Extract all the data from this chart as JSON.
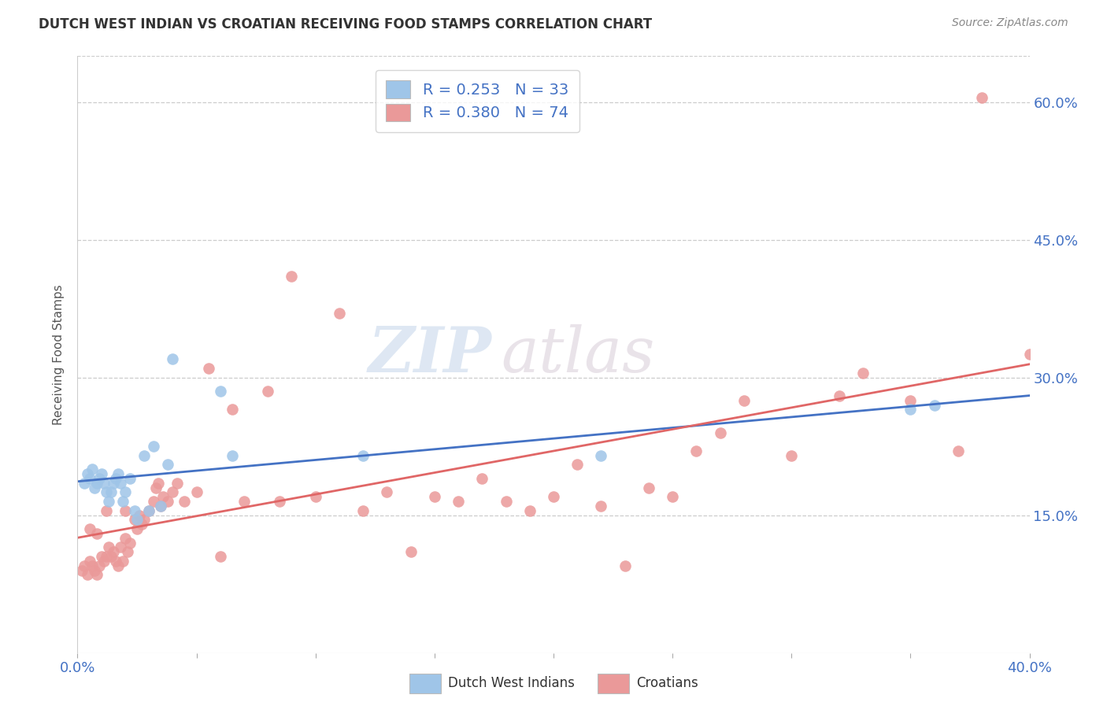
{
  "title": "DUTCH WEST INDIAN VS CROATIAN RECEIVING FOOD STAMPS CORRELATION CHART",
  "source": "Source: ZipAtlas.com",
  "ylabel": "Receiving Food Stamps",
  "ytick_labels": [
    "15.0%",
    "30.0%",
    "45.0%",
    "60.0%"
  ],
  "ytick_values": [
    0.15,
    0.3,
    0.45,
    0.6
  ],
  "xlim": [
    0.0,
    0.4
  ],
  "ylim": [
    0.0,
    0.65
  ],
  "legend_label1": "Dutch West Indians",
  "legend_label2": "Croatians",
  "legend_r1": "R = 0.253",
  "legend_n1": "N = 33",
  "legend_r2": "R = 0.380",
  "legend_n2": "N = 74",
  "color_blue": "#9fc5e8",
  "color_pink": "#ea9999",
  "color_blue_dark": "#4472c4",
  "color_pink_dark": "#e06666",
  "watermark_zip": "ZIP",
  "watermark_atlas": "atlas",
  "dutch_west_indian_x": [
    0.003,
    0.004,
    0.005,
    0.006,
    0.007,
    0.008,
    0.009,
    0.01,
    0.011,
    0.012,
    0.013,
    0.014,
    0.015,
    0.016,
    0.017,
    0.018,
    0.019,
    0.02,
    0.022,
    0.024,
    0.025,
    0.028,
    0.03,
    0.032,
    0.035,
    0.038,
    0.04,
    0.06,
    0.065,
    0.12,
    0.22,
    0.35,
    0.36
  ],
  "dutch_west_indian_y": [
    0.185,
    0.195,
    0.19,
    0.2,
    0.18,
    0.185,
    0.19,
    0.195,
    0.185,
    0.175,
    0.165,
    0.175,
    0.185,
    0.19,
    0.195,
    0.185,
    0.165,
    0.175,
    0.19,
    0.155,
    0.145,
    0.215,
    0.155,
    0.225,
    0.16,
    0.205,
    0.32,
    0.285,
    0.215,
    0.215,
    0.215,
    0.265,
    0.27
  ],
  "croatian_x": [
    0.002,
    0.003,
    0.004,
    0.005,
    0.006,
    0.007,
    0.008,
    0.009,
    0.01,
    0.011,
    0.012,
    0.013,
    0.014,
    0.015,
    0.016,
    0.017,
    0.018,
    0.019,
    0.02,
    0.021,
    0.022,
    0.024,
    0.025,
    0.026,
    0.027,
    0.028,
    0.03,
    0.032,
    0.033,
    0.034,
    0.035,
    0.036,
    0.038,
    0.04,
    0.042,
    0.045,
    0.05,
    0.055,
    0.06,
    0.065,
    0.07,
    0.08,
    0.085,
    0.09,
    0.1,
    0.11,
    0.12,
    0.13,
    0.14,
    0.15,
    0.16,
    0.17,
    0.18,
    0.19,
    0.2,
    0.21,
    0.22,
    0.23,
    0.24,
    0.25,
    0.26,
    0.27,
    0.28,
    0.3,
    0.32,
    0.33,
    0.35,
    0.37,
    0.38,
    0.4,
    0.005,
    0.008,
    0.012,
    0.02
  ],
  "croatian_y": [
    0.09,
    0.095,
    0.085,
    0.1,
    0.095,
    0.09,
    0.085,
    0.095,
    0.105,
    0.1,
    0.105,
    0.115,
    0.105,
    0.11,
    0.1,
    0.095,
    0.115,
    0.1,
    0.125,
    0.11,
    0.12,
    0.145,
    0.135,
    0.15,
    0.14,
    0.145,
    0.155,
    0.165,
    0.18,
    0.185,
    0.16,
    0.17,
    0.165,
    0.175,
    0.185,
    0.165,
    0.175,
    0.31,
    0.105,
    0.265,
    0.165,
    0.285,
    0.165,
    0.41,
    0.17,
    0.37,
    0.155,
    0.175,
    0.11,
    0.17,
    0.165,
    0.19,
    0.165,
    0.155,
    0.17,
    0.205,
    0.16,
    0.095,
    0.18,
    0.17,
    0.22,
    0.24,
    0.275,
    0.215,
    0.28,
    0.305,
    0.275,
    0.22,
    0.605,
    0.325,
    0.135,
    0.13,
    0.155,
    0.155
  ]
}
